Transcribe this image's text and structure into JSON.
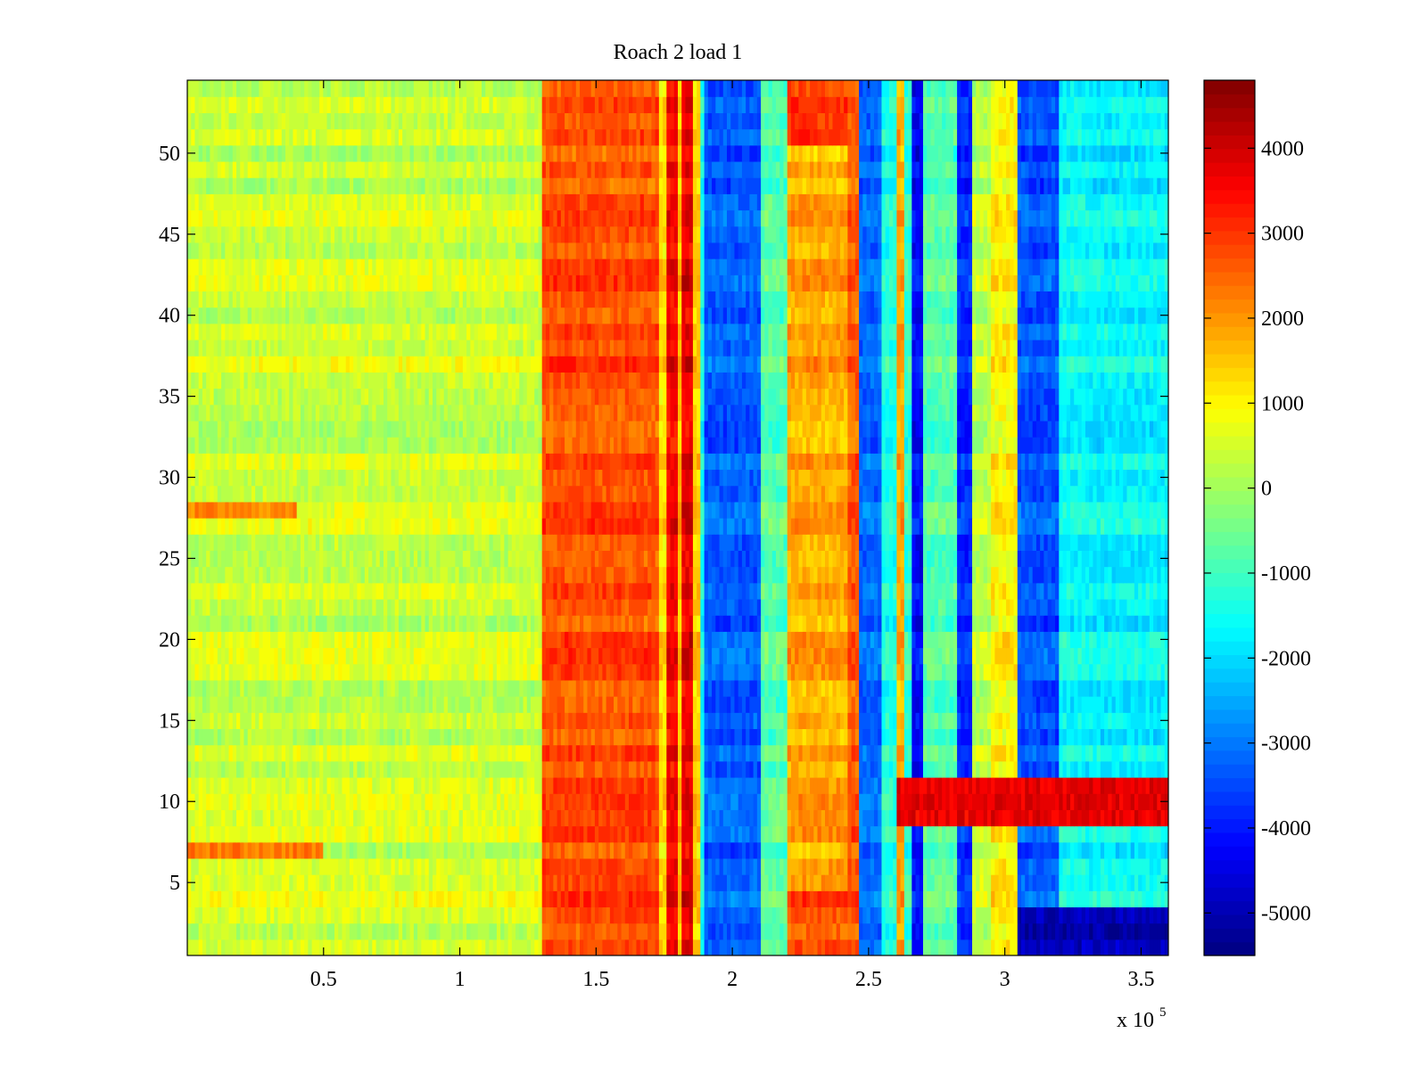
{
  "chart_data": {
    "type": "heatmap",
    "title": "Roach 2 load 1",
    "xlabel": "",
    "ylabel": "",
    "x_multiplier_label": "x 10",
    "x_multiplier_exponent": "5",
    "xlim": [
      0,
      3.6
    ],
    "ylim": [
      0.5,
      54.5
    ],
    "x_ticks": [
      0.5,
      1,
      1.5,
      2,
      2.5,
      3,
      3.5
    ],
    "x_tick_labels": [
      "0.5",
      "1",
      "1.5",
      "2",
      "2.5",
      "3",
      "3.5"
    ],
    "y_ticks": [
      5,
      10,
      15,
      20,
      25,
      30,
      35,
      40,
      45,
      50
    ],
    "y_tick_labels": [
      "5",
      "10",
      "15",
      "20",
      "25",
      "30",
      "35",
      "40",
      "45",
      "50"
    ],
    "rows": 54,
    "colormap": "jet",
    "colorbar": {
      "range": [
        -5500,
        4800
      ],
      "ticks": [
        4000,
        3000,
        2000,
        1000,
        0,
        -1000,
        -2000,
        -3000,
        -4000,
        -5000
      ],
      "tick_labels": [
        "4000",
        "3000",
        "2000",
        "1000",
        "0",
        "-1000",
        "-2000",
        "-3000",
        "-4000",
        "-5000"
      ],
      "levels": 64
    },
    "value_bands": [
      {
        "x_start": 0.0,
        "x_end": 1.3,
        "value": 400
      },
      {
        "x_start": 1.3,
        "x_end": 1.73,
        "value": 2700
      },
      {
        "x_start": 1.73,
        "x_end": 1.76,
        "value": 1200
      },
      {
        "x_start": 1.76,
        "x_end": 1.8,
        "value": 3500
      },
      {
        "x_start": 1.8,
        "x_end": 1.82,
        "value": 1500
      },
      {
        "x_start": 1.82,
        "x_end": 1.85,
        "value": 3700
      },
      {
        "x_start": 1.85,
        "x_end": 1.88,
        "value": 1400
      },
      {
        "x_start": 1.88,
        "x_end": 1.9,
        "value": -1500
      },
      {
        "x_start": 1.9,
        "x_end": 2.1,
        "value": -3300
      },
      {
        "x_start": 2.1,
        "x_end": 2.2,
        "value": -800
      },
      {
        "x_start": 2.2,
        "x_end": 2.43,
        "value": 1800
      },
      {
        "x_start": 2.43,
        "x_end": 2.46,
        "value": 2600
      },
      {
        "x_start": 2.46,
        "x_end": 2.55,
        "value": -3200
      },
      {
        "x_start": 2.55,
        "x_end": 2.6,
        "value": -1400
      },
      {
        "x_start": 2.6,
        "x_end": 2.63,
        "value": 1800
      },
      {
        "x_start": 2.63,
        "x_end": 2.66,
        "value": -1200
      },
      {
        "x_start": 2.66,
        "x_end": 2.7,
        "value": -4200
      },
      {
        "x_start": 2.7,
        "x_end": 2.82,
        "value": -800
      },
      {
        "x_start": 2.82,
        "x_end": 2.88,
        "value": -3800
      },
      {
        "x_start": 2.88,
        "x_end": 2.95,
        "value": 300
      },
      {
        "x_start": 2.95,
        "x_end": 3.05,
        "value": 1000
      },
      {
        "x_start": 3.05,
        "x_end": 3.2,
        "value": -3400
      },
      {
        "x_start": 3.2,
        "x_end": 3.3,
        "value": -1600
      },
      {
        "x_start": 3.3,
        "x_end": 3.6,
        "value": -1700
      }
    ],
    "row_features": [
      {
        "rows": [
          7
        ],
        "x_start": 0.0,
        "x_end": 0.5,
        "value": 2600
      },
      {
        "rows": [
          28
        ],
        "x_start": 0.0,
        "x_end": 0.4,
        "value": 1800
      },
      {
        "rows": [
          9,
          10,
          11
        ],
        "x_start": 2.6,
        "x_end": 3.6,
        "value": 3500
      },
      {
        "rows": [
          1,
          2,
          3
        ],
        "x_start": 3.05,
        "x_end": 3.6,
        "value": -5000
      },
      {
        "rows": [
          1,
          2,
          3,
          4
        ],
        "x_start": 2.2,
        "x_end": 2.43,
        "value": 2600
      },
      {
        "rows": [
          51,
          52,
          53,
          54
        ],
        "x_start": 2.2,
        "x_end": 2.43,
        "value": 3000
      }
    ]
  }
}
